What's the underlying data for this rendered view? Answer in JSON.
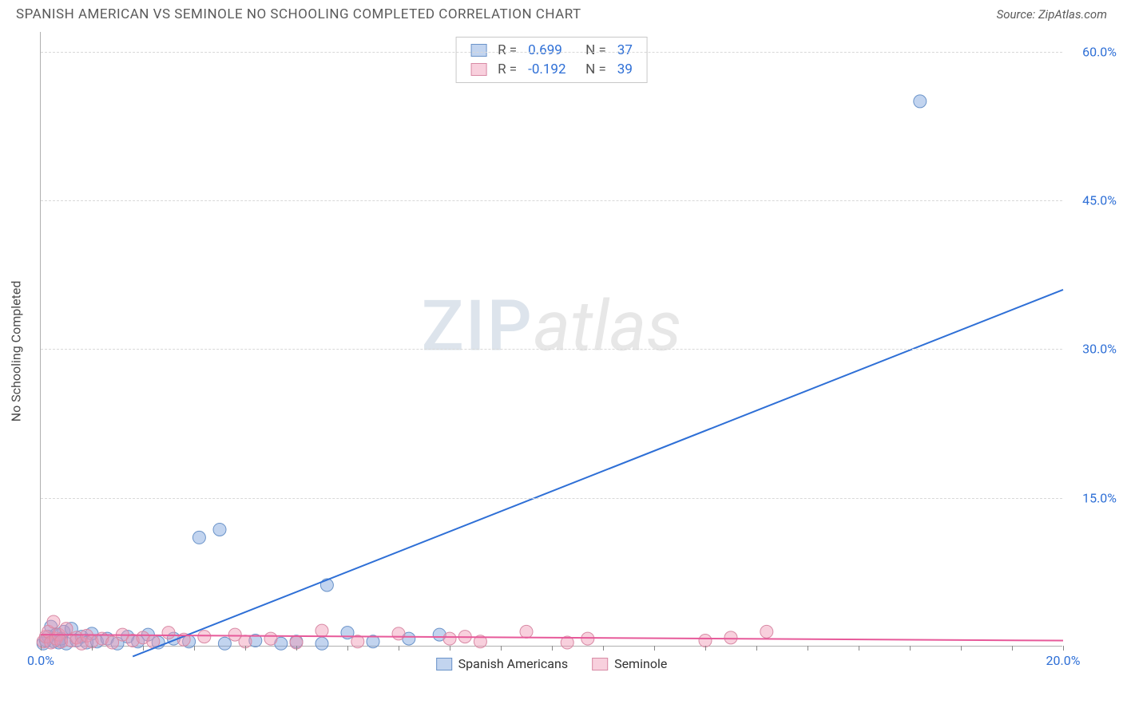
{
  "header": {
    "title": "SPANISH AMERICAN VS SEMINOLE NO SCHOOLING COMPLETED CORRELATION CHART",
    "source": "Source: ZipAtlas.com"
  },
  "watermark": {
    "part1": "ZIP",
    "part2": "atlas"
  },
  "chart": {
    "type": "scatter",
    "ylabel": "No Schooling Completed",
    "xlim": [
      0,
      20
    ],
    "ylim": [
      0,
      62
    ],
    "x_ticks_minor_step": 1,
    "x_ticks_label": [
      {
        "v": 0,
        "label": "0.0%",
        "color": "#2e6fd6"
      },
      {
        "v": 20,
        "label": "20.0%",
        "color": "#2e6fd6"
      }
    ],
    "y_ticks": [
      {
        "v": 15,
        "label": "15.0%",
        "color": "#2e6fd6"
      },
      {
        "v": 30,
        "label": "30.0%",
        "color": "#2e6fd6"
      },
      {
        "v": 45,
        "label": "45.0%",
        "color": "#2e6fd6"
      },
      {
        "v": 60,
        "label": "60.0%",
        "color": "#2e6fd6"
      }
    ],
    "grid_color": "#d8d8d8",
    "background_color": "#ffffff",
    "series": [
      {
        "name": "Spanish Americans",
        "color_fill": "rgba(120,160,220,0.45)",
        "color_stroke": "#6a93c9",
        "marker_radius": 8,
        "r_value": "0.699",
        "n_value": "37",
        "trend": {
          "x1": 1.8,
          "y1": -1.0,
          "x2": 20.0,
          "y2": 36.0,
          "stroke": "#2e6fd6",
          "width": 2
        },
        "points": [
          [
            0.05,
            0.3
          ],
          [
            0.1,
            0.6
          ],
          [
            0.15,
            1.0
          ],
          [
            0.2,
            2.0
          ],
          [
            0.25,
            0.5
          ],
          [
            0.3,
            1.2
          ],
          [
            0.35,
            0.4
          ],
          [
            0.4,
            0.8
          ],
          [
            0.45,
            1.5
          ],
          [
            0.5,
            0.3
          ],
          [
            0.6,
            1.8
          ],
          [
            0.7,
            0.6
          ],
          [
            0.8,
            1.0
          ],
          [
            0.9,
            0.4
          ],
          [
            1.0,
            1.3
          ],
          [
            1.1,
            0.5
          ],
          [
            1.3,
            0.8
          ],
          [
            1.5,
            0.3
          ],
          [
            1.7,
            1.0
          ],
          [
            1.9,
            0.5
          ],
          [
            2.1,
            1.2
          ],
          [
            2.3,
            0.4
          ],
          [
            2.6,
            0.8
          ],
          [
            2.9,
            0.5
          ],
          [
            3.1,
            11.0
          ],
          [
            3.5,
            11.8
          ],
          [
            3.6,
            0.3
          ],
          [
            4.2,
            0.6
          ],
          [
            4.7,
            0.3
          ],
          [
            5.0,
            0.5
          ],
          [
            5.5,
            0.3
          ],
          [
            5.6,
            6.2
          ],
          [
            6.0,
            1.4
          ],
          [
            6.5,
            0.5
          ],
          [
            7.2,
            0.8
          ],
          [
            7.8,
            1.2
          ],
          [
            17.2,
            55.0
          ]
        ]
      },
      {
        "name": "Seminole",
        "color_fill": "rgba(240,150,180,0.45)",
        "color_stroke": "#d88aa5",
        "marker_radius": 8,
        "r_value": "-0.192",
        "n_value": "39",
        "trend": {
          "x1": 0.0,
          "y1": 1.2,
          "x2": 20.0,
          "y2": 0.6,
          "stroke": "#e75a9a",
          "width": 2
        },
        "points": [
          [
            0.05,
            0.5
          ],
          [
            0.1,
            1.0
          ],
          [
            0.15,
            1.5
          ],
          [
            0.2,
            0.4
          ],
          [
            0.25,
            2.5
          ],
          [
            0.3,
            0.8
          ],
          [
            0.35,
            1.2
          ],
          [
            0.4,
            0.5
          ],
          [
            0.5,
            1.8
          ],
          [
            0.6,
            0.6
          ],
          [
            0.7,
            0.9
          ],
          [
            0.8,
            0.3
          ],
          [
            0.9,
            1.1
          ],
          [
            1.0,
            0.5
          ],
          [
            1.2,
            0.8
          ],
          [
            1.4,
            0.4
          ],
          [
            1.6,
            1.2
          ],
          [
            1.8,
            0.6
          ],
          [
            2.0,
            0.9
          ],
          [
            2.2,
            0.5
          ],
          [
            2.5,
            1.4
          ],
          [
            2.8,
            0.7
          ],
          [
            3.2,
            1.0
          ],
          [
            3.8,
            1.2
          ],
          [
            4.0,
            0.5
          ],
          [
            4.5,
            0.8
          ],
          [
            5.0,
            0.4
          ],
          [
            5.5,
            1.6
          ],
          [
            6.2,
            0.5
          ],
          [
            7.0,
            1.3
          ],
          [
            8.0,
            0.8
          ],
          [
            8.3,
            1.0
          ],
          [
            8.6,
            0.5
          ],
          [
            9.5,
            1.5
          ],
          [
            10.3,
            0.4
          ],
          [
            10.7,
            0.8
          ],
          [
            13.0,
            0.6
          ],
          [
            13.5,
            0.9
          ],
          [
            14.2,
            1.5
          ]
        ]
      }
    ],
    "legend_top": {
      "r_label": "R =",
      "n_label": "N =",
      "text_color": "#555",
      "value_color": "#2e6fd6"
    },
    "legend_bottom_labels": [
      "Spanish Americans",
      "Seminole"
    ]
  }
}
